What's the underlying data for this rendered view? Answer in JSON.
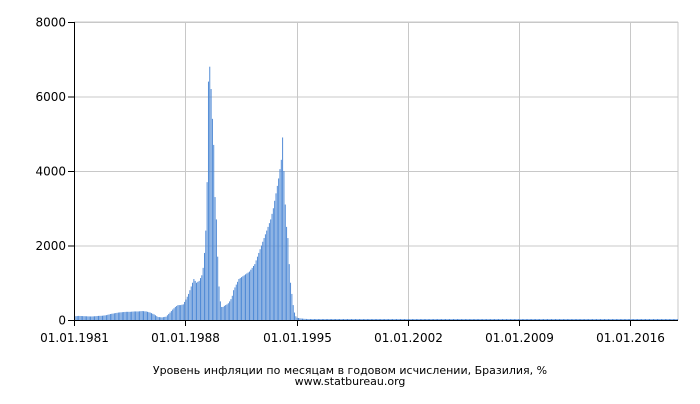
{
  "chart_data": {
    "type": "bar",
    "title": "",
    "caption": "Уровень инфляции по месяцам в годовом исчислении, Бразилия, %",
    "source": "www.statbureau.org",
    "xlabel": "",
    "ylabel": "",
    "x_ticks": [
      "01.01.1981",
      "01.01.1988",
      "01.01.1995",
      "01.01.2002",
      "01.01.2009",
      "01.01.2016"
    ],
    "y_ticks": [
      "0",
      "2000",
      "4000",
      "6000",
      "8000"
    ],
    "xlim": [
      "1981-01",
      "2019-01"
    ],
    "ylim": [
      0,
      8000
    ],
    "grid": true,
    "bar_color": "#4a86d4",
    "series": [
      {
        "x": [
          "1981-01",
          "1981-04",
          "1981-07",
          "1981-10",
          "1982-01",
          "1982-04",
          "1982-07",
          "1982-10",
          "1983-01",
          "1983-04",
          "1983-07",
          "1983-10",
          "1984-01",
          "1984-04",
          "1984-07",
          "1984-10",
          "1985-01",
          "1985-04",
          "1985-07",
          "1985-10",
          "1986-01",
          "1986-04",
          "1986-07",
          "1986-10",
          "1987-01",
          "1987-03",
          "1987-05",
          "1987-07",
          "1987-09",
          "1987-11",
          "1988-01",
          "1988-03",
          "1988-05",
          "1988-07",
          "1988-09",
          "1988-11",
          "1989-01",
          "1989-02",
          "1989-03",
          "1989-04",
          "1989-05",
          "1989-06",
          "1989-07",
          "1989-08",
          "1989-09",
          "1989-10",
          "1989-11",
          "1989-12",
          "1990-01",
          "1990-02",
          "1990-03",
          "1990-04",
          "1990-05",
          "1990-06",
          "1990-07",
          "1990-08",
          "1990-09",
          "1990-10",
          "1990-11",
          "1990-12",
          "1991-01",
          "1991-03",
          "1991-05",
          "1991-07",
          "1991-09",
          "1991-11",
          "1992-01",
          "1992-03",
          "1992-05",
          "1992-07",
          "1992-09",
          "1992-11",
          "1993-01",
          "1993-03",
          "1993-05",
          "1993-07",
          "1993-09",
          "1993-11",
          "1994-01",
          "1994-02",
          "1994-03",
          "1994-04",
          "1994-05",
          "1994-06",
          "1994-07",
          "1994-08",
          "1994-09",
          "1994-10",
          "1994-11",
          "1994-12",
          "1995-01",
          "1995-04",
          "1995-07",
          "1995-10",
          "1996-01",
          "1997-01",
          "1998-01",
          "1999-01",
          "2000-01",
          "2001-01",
          "2002-01",
          "2003-01",
          "2004-01",
          "2005-01",
          "2006-01",
          "2007-01",
          "2008-01",
          "2009-01",
          "2010-01",
          "2011-01",
          "2012-01",
          "2013-01",
          "2014-01",
          "2015-01",
          "2016-01",
          "2017-01",
          "2018-01",
          "2018-12"
        ],
        "values": [
          100,
          110,
          105,
          100,
          95,
          100,
          110,
          115,
          130,
          160,
          180,
          200,
          210,
          220,
          220,
          230,
          230,
          240,
          230,
          200,
          150,
          80,
          70,
          90,
          200,
          280,
          350,
          400,
          400,
          420,
          550,
          700,
          900,
          1100,
          1000,
          1050,
          1200,
          1400,
          1800,
          2400,
          3700,
          6400,
          6800,
          6200,
          5400,
          4700,
          3300,
          2700,
          1700,
          900,
          500,
          350,
          350,
          380,
          400,
          420,
          450,
          500,
          560,
          650,
          800,
          950,
          1100,
          1150,
          1200,
          1250,
          1300,
          1400,
          1500,
          1700,
          1900,
          2100,
          2300,
          2500,
          2700,
          3000,
          3400,
          3800,
          4300,
          4900,
          4000,
          3100,
          2500,
          2200,
          1500,
          1000,
          700,
          400,
          200,
          100,
          60,
          40,
          30,
          25,
          20,
          10,
          5,
          5,
          7,
          7,
          10,
          12,
          7,
          6,
          4,
          4,
          6,
          5,
          5,
          6,
          5,
          6,
          6,
          10,
          9,
          3,
          4,
          4
        ]
      }
    ]
  }
}
